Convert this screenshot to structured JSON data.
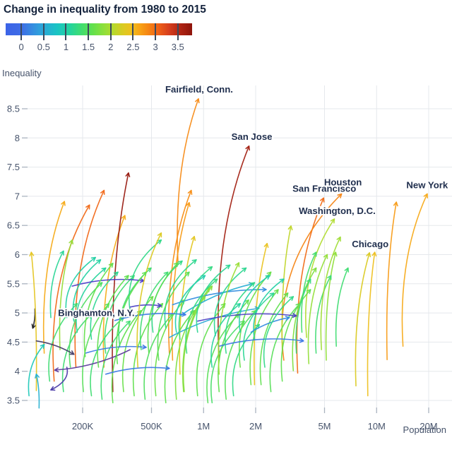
{
  "title": "Change in inequality from 1980 to 2015",
  "legend": {
    "vmin": -0.35,
    "vmax": 3.82,
    "ticks": [
      0,
      0.5,
      1,
      1.5,
      2,
      2.5,
      3,
      3.5
    ],
    "tick_labels": [
      "0",
      "0.5",
      "1",
      "1.5",
      "2",
      "2.5",
      "3",
      "3.5"
    ],
    "stops": [
      [
        -0.35,
        "#3c63e7"
      ],
      [
        0,
        "#3e6ce6"
      ],
      [
        0.4,
        "#2f9fdc"
      ],
      [
        0.8,
        "#1ac4c4"
      ],
      [
        1.1,
        "#25d49b"
      ],
      [
        1.35,
        "#41dd6f"
      ],
      [
        1.6,
        "#63e04b"
      ],
      [
        1.85,
        "#8fdf3a"
      ],
      [
        2.05,
        "#b4da2e"
      ],
      [
        2.25,
        "#d7cc22"
      ],
      [
        2.45,
        "#edc11e"
      ],
      [
        2.65,
        "#f8a315"
      ],
      [
        2.85,
        "#f58414"
      ],
      [
        3.05,
        "#f06316"
      ],
      [
        3.3,
        "#d73f1d"
      ],
      [
        3.55,
        "#b02413"
      ],
      [
        3.82,
        "#8e140b"
      ]
    ]
  },
  "axes": {
    "x_label": "Population",
    "y_label": "Inequality",
    "x_scale": "log",
    "x_ticks": [
      {
        "label": "200K",
        "value": 200000
      },
      {
        "label": "500K",
        "value": 500000
      },
      {
        "label": "1M",
        "value": 1000000
      },
      {
        "label": "2M",
        "value": 2000000
      },
      {
        "label": "5M",
        "value": 5000000
      },
      {
        "label": "10M",
        "value": 10000000
      },
      {
        "label": "20M",
        "value": 20000000
      }
    ],
    "y_ticks": [
      3.5,
      4,
      4.5,
      5,
      5.5,
      6,
      6.5,
      7,
      7.5,
      8,
      8.5
    ]
  },
  "palette": {
    "grid": "#e5e8ec",
    "tick_mark": "#aab3bf",
    "tick_text": "#46536b",
    "city_label": "#1f2e4d",
    "title_text": "#14233c"
  },
  "chart_data": {
    "type": "scatter",
    "description": "Each arrow shows one metro area moving from its 1980 position (tail) to its 2015 position (tip) in population (log x) vs inequality (y); arrow color encodes change in inequality 1980-2015.",
    "x_field": "population",
    "y_field": "inequality",
    "color_field": "change_in_inequality_1980_to_2015",
    "arrows": [
      [
        106000,
        5.07,
        103000,
        4.74,
        "Binghamton, N.Y.",
        "#1c1c1c"
      ],
      [
        711000,
        5.86,
        934000,
        8.67,
        "Fairfield, Conn.",
        ""
      ],
      [
        1230000,
        4.19,
        1830000,
        7.86,
        "San Jose",
        ""
      ],
      [
        3500000,
        3.97,
        4940000,
        6.97,
        "San Francisco",
        ""
      ],
      [
        2910000,
        4.19,
        6270000,
        7.04,
        "Houston",
        ""
      ],
      [
        3940000,
        4.58,
        5700000,
        6.61,
        "Washington, D.C.",
        ""
      ],
      [
        7600000,
        3.75,
        9100000,
        6.03,
        "Chicago",
        ""
      ],
      [
        14200000,
        4.43,
        19600000,
        7.04,
        "New York",
        ""
      ],
      [
        11500000,
        4.2,
        13000000,
        6.9
      ],
      [
        8900000,
        3.58,
        9750000,
        6.04
      ],
      [
        120000,
        4.31,
        157000,
        6.91
      ],
      [
        108000,
        3.67,
        101000,
        6.04
      ],
      [
        137000,
        3.83,
        219000,
        6.85
      ],
      [
        183000,
        4.07,
        266000,
        7.1
      ],
      [
        266000,
        4.07,
        351000,
        6.67
      ],
      [
        299000,
        3.65,
        368000,
        7.4
      ],
      [
        148000,
        4.37,
        174000,
        6.25
      ],
      [
        131000,
        4.92,
        155000,
        6.06
      ],
      [
        98000,
        3.58,
        120000,
        4.46
      ],
      [
        112000,
        3.37,
        108000,
        3.95
      ],
      [
        634000,
        4.31,
        849000,
        7.1
      ],
      [
        662000,
        4.19,
        826000,
        6.89
      ],
      [
        731000,
        3.95,
        884000,
        6.31
      ],
      [
        2850000,
        4.37,
        3200000,
        6.49
      ],
      [
        1970000,
        3.77,
        2330000,
        6.19
      ],
      [
        129000,
        3.83,
        186000,
        5.16
      ],
      [
        155000,
        3.65,
        225000,
        4.98
      ],
      [
        170000,
        4.07,
        259000,
        5.52
      ],
      [
        202000,
        3.65,
        284000,
        5.16
      ],
      [
        225000,
        3.58,
        345000,
        4.92
      ],
      [
        259000,
        3.52,
        376000,
        4.86
      ],
      [
        299000,
        3.46,
        436000,
        5.04
      ],
      [
        345000,
        3.65,
        510000,
        5.28
      ],
      [
        397000,
        3.58,
        580000,
        5.16
      ],
      [
        459000,
        3.52,
        662000,
        4.98
      ],
      [
        530000,
        3.58,
        773000,
        5.22
      ],
      [
        605000,
        3.46,
        884000,
        5.04
      ],
      [
        697000,
        3.52,
        1020000,
        5.28
      ],
      [
        773000,
        3.65,
        1120000,
        5.46
      ],
      [
        924000,
        3.58,
        1330000,
        5.16
      ],
      [
        1060000,
        3.46,
        1600000,
        4.98
      ],
      [
        634000,
        4.58,
        2090000,
        5.08
      ],
      [
        662000,
        5.14,
        2300000,
        5.4
      ],
      [
        731000,
        4.95,
        1930000,
        5.5
      ],
      [
        1120000,
        3.46,
        1720000,
        4.86
      ],
      [
        766000,
        3.65,
        1080000,
        5.43
      ],
      [
        1230000,
        3.65,
        1820000,
        5.22
      ],
      [
        1350000,
        3.52,
        2000000,
        5.04
      ],
      [
        1630000,
        4.07,
        2450000,
        5.7
      ],
      [
        1880000,
        3.77,
        2700000,
        5.4
      ],
      [
        1490000,
        3.58,
        2100000,
        4.8
      ],
      [
        2150000,
        3.77,
        3070000,
        5.34
      ],
      [
        2450000,
        3.65,
        3600000,
        5.16
      ],
      [
        2850000,
        3.83,
        4150000,
        5.4
      ],
      [
        3300000,
        4.01,
        4470000,
        5.77
      ],
      [
        272000,
        4.31,
        397000,
        5.64
      ],
      [
        328000,
        4.43,
        497000,
        5.77
      ],
      [
        436000,
        4.37,
        622000,
        5.7
      ],
      [
        225000,
        4.55,
        320000,
        5.7
      ],
      [
        186000,
        4.67,
        272000,
        5.77
      ],
      [
        162000,
        4.92,
        237000,
        5.95
      ],
      [
        510000,
        4.67,
        752000,
        5.89
      ],
      [
        605000,
        4.74,
        907000,
        5.91
      ],
      [
        731000,
        4.55,
        1120000,
        5.79
      ],
      [
        924000,
        4.67,
        1420000,
        5.82
      ],
      [
        1170000,
        4.61,
        1760000,
        5.77
      ],
      [
        376000,
        5.04,
        569000,
        6.25
      ],
      [
        1630000,
        4.67,
        2410000,
        5.64
      ],
      [
        1970000,
        4.55,
        2910000,
        5.58
      ],
      [
        174000,
        5.46,
        452000,
        5.55,
        "",
        "#4838c8"
      ],
      [
        307000,
        4.87,
        788000,
        4.97
      ],
      [
        376000,
        4.37,
        138000,
        4.02,
        "",
        "#5b3a9b"
      ],
      [
        108000,
        4.52,
        178000,
        4.29,
        "",
        "#413a66"
      ],
      [
        207000,
        4.31,
        466000,
        4.41
      ],
      [
        272000,
        3.95,
        634000,
        4.05
      ],
      [
        924000,
        4.86,
        3440000,
        4.95,
        "",
        "#4b40c4"
      ],
      [
        1230000,
        4.43,
        3780000,
        4.52
      ],
      [
        162000,
        4.07,
        131000,
        3.68,
        "",
        "#4a3aa8"
      ],
      [
        1880000,
        4.67,
        3130000,
        4.92
      ],
      [
        376000,
        5.1,
        569000,
        5.12,
        "",
        "#4b40c4"
      ],
      [
        417000,
        4.07,
        569000,
        6.37
      ],
      [
        1230000,
        3.95,
        1600000,
        5.86
      ],
      [
        4060000,
        4.13,
        5180000,
        6.0
      ],
      [
        5120000,
        4.19,
        5800000,
        6.04
      ],
      [
        5850000,
        4.43,
        6840000,
        5.77
      ],
      [
        4470000,
        4.31,
        5450000,
        5.64
      ],
      [
        3700000,
        4.67,
        4470000,
        6.04
      ],
      [
        3440000,
        4.31,
        4150000,
        5.58
      ],
      [
        4800000,
        4.37,
        6170000,
        6.3
      ],
      [
        207000,
        4.25,
        299000,
        5.85
      ],
      [
        247000,
        4.07,
        368000,
        5.64
      ],
      [
        318000,
        4.13,
        466000,
        5.7
      ],
      [
        178000,
        4.86,
        254000,
        5.91
      ],
      [
        483000,
        4.31,
        711000,
        5.86
      ],
      [
        551000,
        4.19,
        826000,
        5.7
      ],
      [
        697000,
        4.67,
        1020000,
        5.64
      ],
      [
        800000,
        4.31,
        1200000,
        5.58
      ],
      [
        1350000,
        4.31,
        1970000,
        5.52
      ],
      [
        1720000,
        4.19,
        2550000,
        5.34
      ],
      [
        1120000,
        4.07,
        1630000,
        5.16
      ],
      [
        2260000,
        4.07,
        3300000,
        5.28
      ]
    ],
    "label_offsets": {
      "Binghamton, N.Y.": [
        90,
        -17
      ],
      "Fairfield, Conn.": [
        1,
        -9
      ],
      "San Jose": [
        4,
        -9
      ],
      "San Francisco": [
        1,
        -9
      ],
      "Houston": [
        2,
        -12
      ],
      "Washington, D.C.": [
        4,
        -7
      ],
      "Chicago": [
        1,
        -8
      ],
      "New York": [
        0,
        -8
      ]
    }
  }
}
